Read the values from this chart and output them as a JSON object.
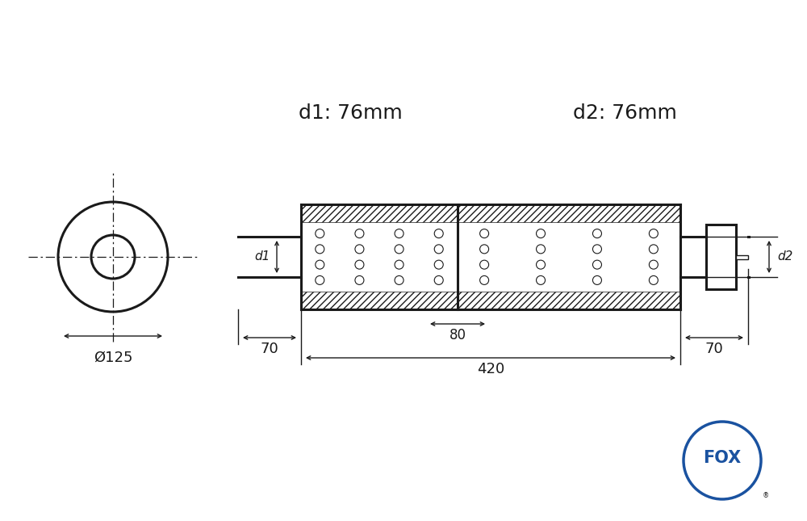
{
  "bg_color": "#ffffff",
  "line_color": "#1a1a1a",
  "d1_label": "d1: 76mm",
  "d2_label": "d2: 76mm",
  "phi125_label": "Ø125",
  "dim_70_left": "70",
  "dim_70_right": "70",
  "dim_420": "420",
  "dim_80": "80",
  "d1_tick": "d1",
  "d2_tick": "d2",
  "font_size_top_label": 18,
  "font_size_dim": 13,
  "font_size_tick": 11,
  "fox_blue": "#1a52a0"
}
